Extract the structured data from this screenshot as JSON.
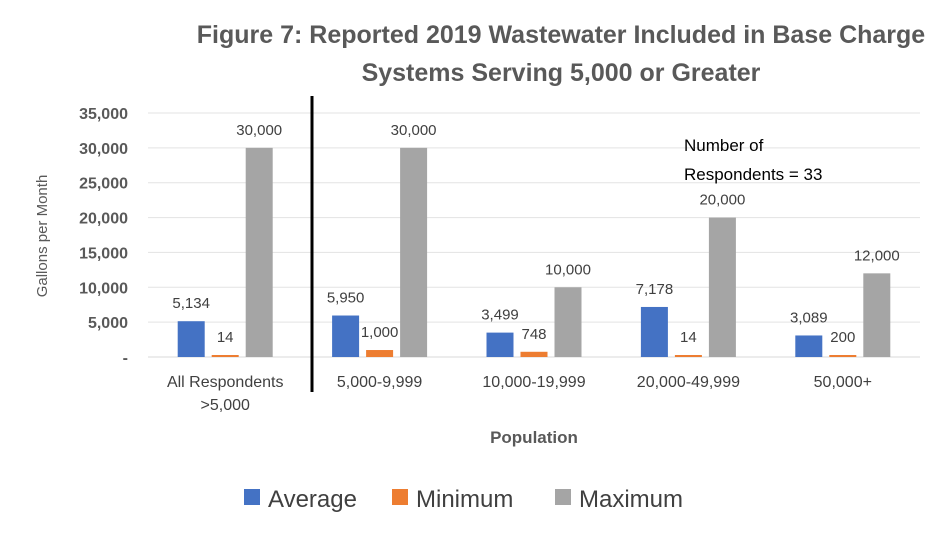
{
  "chart_data": {
    "type": "bar",
    "title": "Figure 7: Reported 2019 Wastewater Included in Base Charge",
    "subtitle": "Systems Serving 5,000 or Greater",
    "xlabel": "Population",
    "ylabel": "Gallons per Month",
    "ylim": [
      0,
      35000
    ],
    "yticks": [
      "-",
      "5,000",
      "10,000",
      "15,000",
      "20,000",
      "25,000",
      "30,000",
      "35,000"
    ],
    "ytick_values": [
      0,
      5000,
      10000,
      15000,
      20000,
      25000,
      30000,
      35000
    ],
    "grid": true,
    "legend_position": "bottom",
    "categories": [
      {
        "line1": "All Respondents",
        "line2": ">5,000"
      },
      {
        "line1": "5,000-9,999",
        "line2": ""
      },
      {
        "line1": "10,000-19,999",
        "line2": ""
      },
      {
        "line1": "20,000-49,999",
        "line2": ""
      },
      {
        "line1": "50,000+",
        "line2": ""
      }
    ],
    "series": [
      {
        "name": "Average",
        "color": "#4472C4",
        "values": [
          5134,
          5950,
          3499,
          7178,
          3089
        ],
        "labels": [
          "5,134",
          "5,950",
          "3,499",
          "7,178",
          "3,089"
        ]
      },
      {
        "name": "Minimum",
        "color": "#ED7D31",
        "values": [
          14,
          1000,
          748,
          14,
          200
        ],
        "labels": [
          "14",
          "1,000",
          "748",
          "14",
          "200"
        ]
      },
      {
        "name": "Maximum",
        "color": "#A5A5A5",
        "values": [
          30000,
          30000,
          10000,
          20000,
          12000
        ],
        "labels": [
          "30,000",
          "30,000",
          "10,000",
          "20,000",
          "12,000"
        ]
      }
    ],
    "annotation": {
      "line1": "Number of",
      "line2": "Respondents  = 33"
    }
  }
}
